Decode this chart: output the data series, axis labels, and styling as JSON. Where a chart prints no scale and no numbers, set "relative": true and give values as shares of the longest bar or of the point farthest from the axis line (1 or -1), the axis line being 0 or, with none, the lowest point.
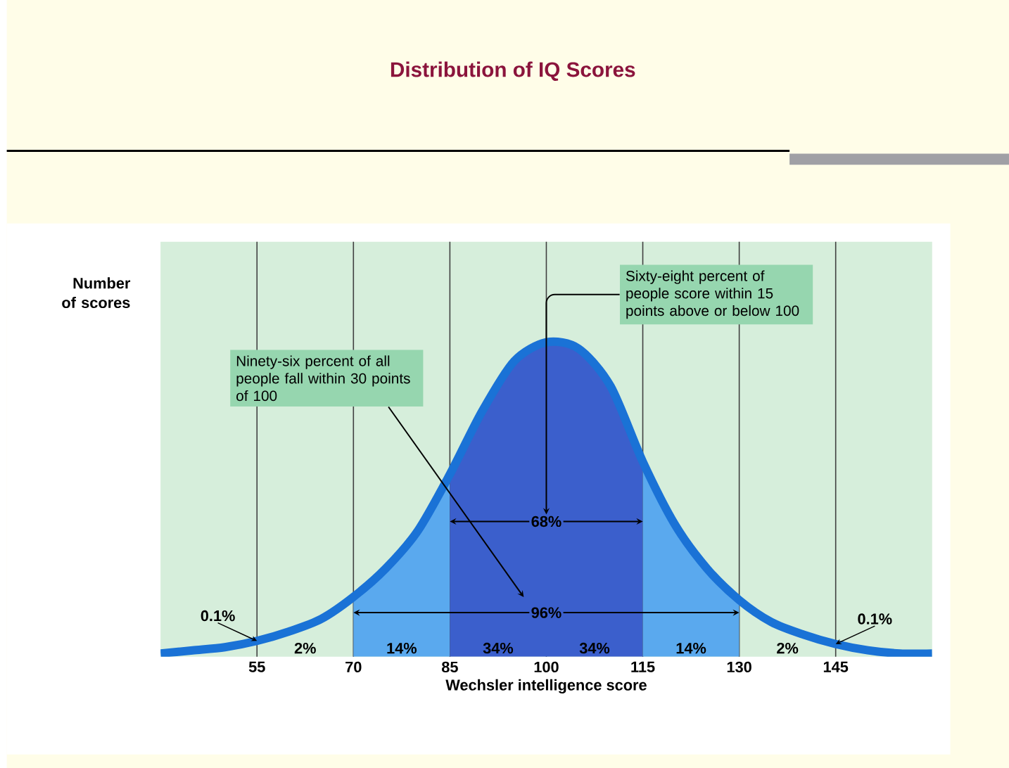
{
  "chart_data": {
    "type": "line",
    "title": "Distribution of IQ Scores",
    "xlabel": "Wechsler intelligence score",
    "ylabel": "Number of scores",
    "relative": true,
    "x": [
      40,
      45,
      50,
      55,
      60,
      65,
      70,
      75,
      80,
      85,
      90,
      95,
      100,
      105,
      110,
      115,
      120,
      125,
      130,
      135,
      140,
      145,
      150,
      155,
      160
    ],
    "series": [
      {
        "color": "#1a72d6",
        "values": [
          0.01,
          0.02,
          0.03,
          0.05,
          0.08,
          0.12,
          0.19,
          0.28,
          0.4,
          0.58,
          0.78,
          0.94,
          1.0,
          0.98,
          0.86,
          0.62,
          0.42,
          0.28,
          0.18,
          0.11,
          0.07,
          0.04,
          0.02,
          0.01,
          0.01
        ]
      },
      {
        "type": "area",
        "color": "#5aa9ee",
        "x": [
          70,
          75,
          80,
          85
        ],
        "values": [
          0.19,
          0.28,
          0.4,
          0.58
        ]
      },
      {
        "type": "area",
        "color": "#3b5fcc",
        "x": [
          85,
          90,
          95,
          100,
          105,
          110,
          115
        ],
        "values": [
          0.58,
          0.78,
          0.94,
          1.0,
          0.98,
          0.86,
          0.62
        ]
      },
      {
        "type": "area",
        "color": "#5aa9ee",
        "x": [
          115,
          120,
          125,
          130
        ],
        "values": [
          0.62,
          0.42,
          0.28,
          0.18
        ]
      }
    ],
    "xlim": [
      40,
      160
    ],
    "xticks": [
      55,
      70,
      85,
      100,
      115,
      130,
      145
    ],
    "grid": "x",
    "annotations": [
      "Ninety-six percent of all people fall within 30 points of 100",
      "Sixty-eight percent of people score within 15 points above or below 100",
      "68%",
      "96%",
      "2%",
      "2%",
      {
        "text": "0.1%",
        "x": 55,
        "y": 0.05
      },
      {
        "text": "14%",
        "x": 77.5,
        "y": 0
      },
      {
        "text": "34%",
        "x": 92.5,
        "y": 0
      },
      {
        "text": "34%",
        "x": 107.5,
        "y": 0
      },
      {
        "text": "14%",
        "x": 122.5,
        "y": 0
      },
      {
        "text": "0.1%",
        "x": 145,
        "y": 0.04
      }
    ]
  }
}
